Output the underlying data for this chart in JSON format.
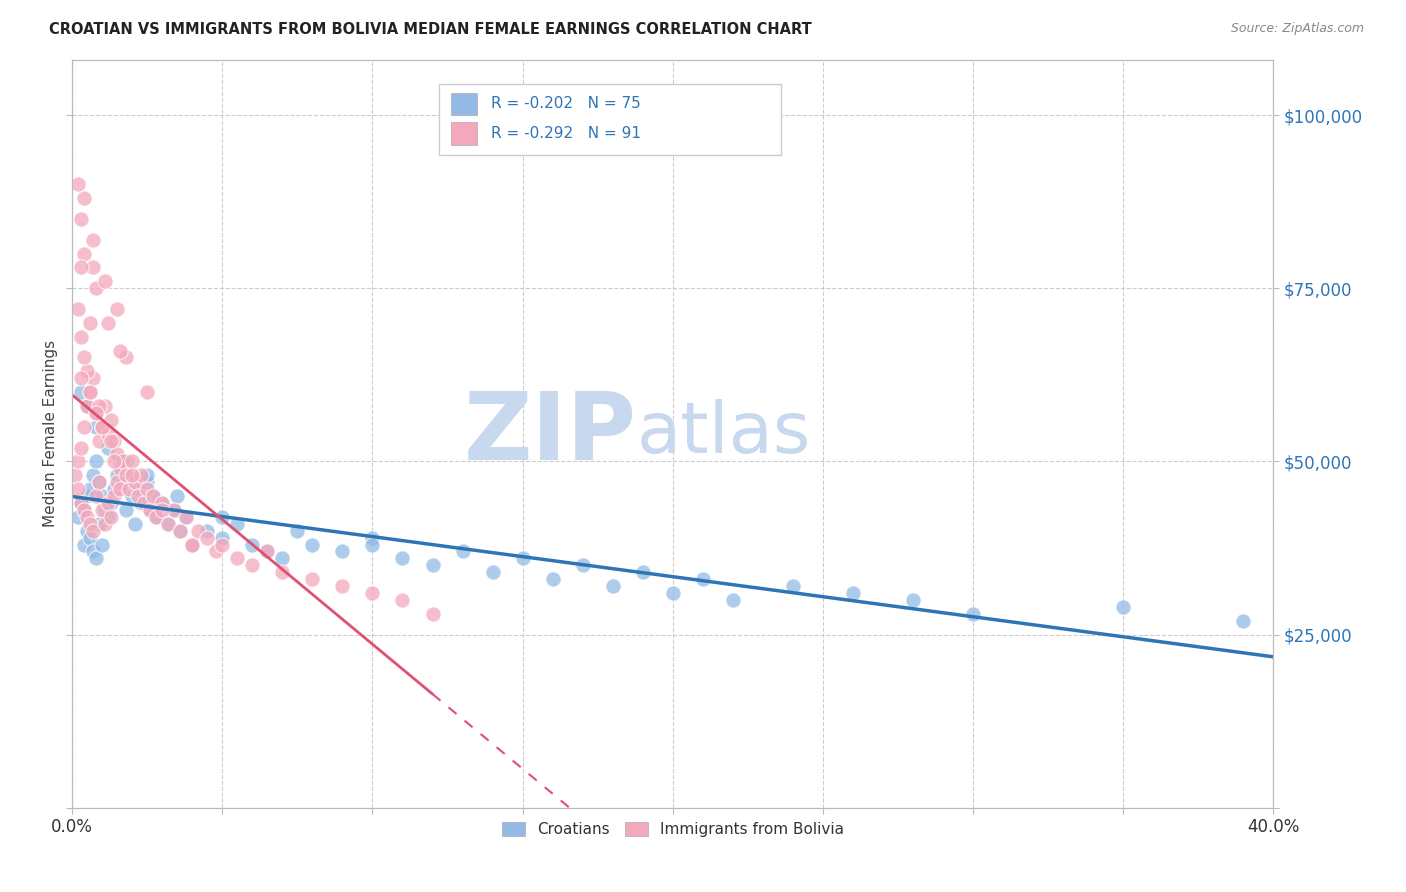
{
  "title": "CROATIAN VS IMMIGRANTS FROM BOLIVIA MEDIAN FEMALE EARNINGS CORRELATION CHART",
  "source": "Source: ZipAtlas.com",
  "ylabel": "Median Female Earnings",
  "xlim": [
    0.0,
    0.4
  ],
  "ylim": [
    0,
    108000
  ],
  "yticks": [
    0,
    25000,
    50000,
    75000,
    100000
  ],
  "xticks": [
    0.0,
    0.05,
    0.1,
    0.15,
    0.2,
    0.25,
    0.3,
    0.35,
    0.4
  ],
  "croatian_R": -0.202,
  "croatian_N": 75,
  "bolivia_R": -0.292,
  "bolivia_N": 91,
  "croatian_color": "#92BAE4",
  "bolivia_color": "#F4A8BB",
  "croatian_line_color": "#2E75B6",
  "bolivia_line_color": "#E05070",
  "background_color": "#FFFFFF",
  "grid_color": "#CCCCCC",
  "axis_label_color": "#2E75B6",
  "legend_text_color": "#2E75B6",
  "title_color": "#222222",
  "ylabel_color": "#444444",
  "watermark_zip_color": "#C8D8EE",
  "watermark_atlas_color": "#C8D8EE",
  "cr_x": [
    0.002,
    0.003,
    0.004,
    0.004,
    0.005,
    0.005,
    0.006,
    0.006,
    0.007,
    0.007,
    0.008,
    0.008,
    0.009,
    0.009,
    0.01,
    0.01,
    0.011,
    0.012,
    0.013,
    0.014,
    0.015,
    0.016,
    0.017,
    0.018,
    0.02,
    0.021,
    0.022,
    0.023,
    0.025,
    0.026,
    0.027,
    0.028,
    0.03,
    0.032,
    0.034,
    0.036,
    0.038,
    0.04,
    0.045,
    0.05,
    0.055,
    0.06,
    0.065,
    0.07,
    0.08,
    0.09,
    0.1,
    0.11,
    0.12,
    0.13,
    0.14,
    0.15,
    0.16,
    0.17,
    0.18,
    0.19,
    0.2,
    0.21,
    0.22,
    0.24,
    0.26,
    0.28,
    0.3,
    0.35,
    0.39,
    0.003,
    0.005,
    0.008,
    0.012,
    0.018,
    0.025,
    0.035,
    0.05,
    0.075,
    0.1
  ],
  "cr_y": [
    42000,
    44000,
    43000,
    38000,
    45000,
    40000,
    46000,
    39000,
    48000,
    37000,
    50000,
    36000,
    47000,
    41000,
    45000,
    38000,
    43000,
    42000,
    44000,
    46000,
    48000,
    50000,
    47000,
    43000,
    45000,
    41000,
    46000,
    44000,
    47000,
    43000,
    45000,
    42000,
    44000,
    41000,
    43000,
    40000,
    42000,
    38000,
    40000,
    39000,
    41000,
    38000,
    37000,
    36000,
    38000,
    37000,
    39000,
    36000,
    35000,
    37000,
    34000,
    36000,
    33000,
    35000,
    32000,
    34000,
    31000,
    33000,
    30000,
    32000,
    31000,
    30000,
    28000,
    29000,
    27000,
    60000,
    58000,
    55000,
    52000,
    50000,
    48000,
    45000,
    42000,
    40000,
    38000
  ],
  "bo_x": [
    0.001,
    0.002,
    0.002,
    0.003,
    0.003,
    0.004,
    0.004,
    0.005,
    0.005,
    0.006,
    0.006,
    0.007,
    0.007,
    0.008,
    0.008,
    0.009,
    0.009,
    0.01,
    0.01,
    0.011,
    0.011,
    0.012,
    0.012,
    0.013,
    0.013,
    0.014,
    0.014,
    0.015,
    0.015,
    0.016,
    0.016,
    0.017,
    0.018,
    0.019,
    0.02,
    0.021,
    0.022,
    0.023,
    0.024,
    0.025,
    0.026,
    0.027,
    0.028,
    0.03,
    0.032,
    0.034,
    0.036,
    0.038,
    0.04,
    0.042,
    0.045,
    0.048,
    0.05,
    0.055,
    0.06,
    0.065,
    0.07,
    0.08,
    0.09,
    0.1,
    0.11,
    0.12,
    0.004,
    0.008,
    0.012,
    0.018,
    0.025,
    0.003,
    0.007,
    0.015,
    0.003,
    0.005,
    0.009,
    0.002,
    0.004,
    0.006,
    0.01,
    0.014,
    0.02,
    0.03,
    0.04,
    0.004,
    0.007,
    0.011,
    0.002,
    0.006,
    0.016,
    0.003,
    0.008,
    0.003,
    0.013
  ],
  "bo_y": [
    48000,
    50000,
    46000,
    52000,
    44000,
    55000,
    43000,
    58000,
    42000,
    60000,
    41000,
    62000,
    40000,
    57000,
    45000,
    53000,
    47000,
    55000,
    43000,
    58000,
    41000,
    54000,
    44000,
    56000,
    42000,
    53000,
    45000,
    51000,
    47000,
    49000,
    46000,
    50000,
    48000,
    46000,
    50000,
    47000,
    45000,
    48000,
    44000,
    46000,
    43000,
    45000,
    42000,
    44000,
    41000,
    43000,
    40000,
    42000,
    38000,
    40000,
    39000,
    37000,
    38000,
    36000,
    35000,
    37000,
    34000,
    33000,
    32000,
    31000,
    30000,
    28000,
    80000,
    75000,
    70000,
    65000,
    60000,
    85000,
    78000,
    72000,
    68000,
    63000,
    58000,
    72000,
    65000,
    60000,
    55000,
    50000,
    48000,
    43000,
    38000,
    88000,
    82000,
    76000,
    90000,
    70000,
    66000,
    62000,
    57000,
    78000,
    53000
  ]
}
